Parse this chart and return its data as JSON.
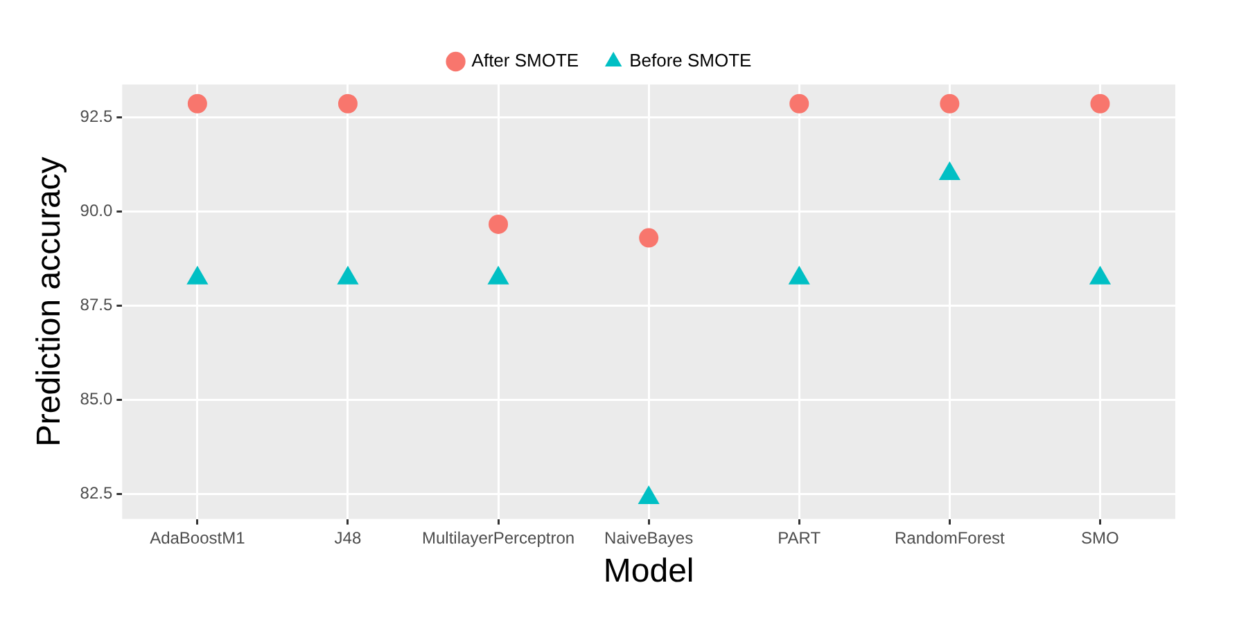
{
  "chart_data": {
    "type": "scatter",
    "xlabel": "Model",
    "ylabel": "Prediction accuracy",
    "categories": [
      "AdaBoostM1",
      "J48",
      "MultilayerPerceptron",
      "NaiveBayes",
      "PART",
      "RandomForest",
      "SMO"
    ],
    "series": [
      {
        "name": "After SMOTE",
        "color": "#f8766d",
        "marker": "circle",
        "values": [
          92.86,
          92.86,
          89.66,
          89.3,
          92.86,
          92.86,
          92.86
        ]
      },
      {
        "name": "Before SMOTE",
        "color": "#00bfc4",
        "marker": "triangle",
        "values": [
          88.23,
          88.23,
          88.23,
          82.4,
          88.23,
          91.0,
          88.23
        ]
      }
    ],
    "ylim": [
      81.84,
      93.37
    ],
    "yticks": [
      {
        "value": 82.5,
        "label": "82.5"
      },
      {
        "value": 85,
        "label": "85.0"
      },
      {
        "value": 87.5,
        "label": "87.5"
      },
      {
        "value": 90,
        "label": "90.0"
      },
      {
        "value": 92.5,
        "label": "92.5"
      }
    ],
    "grid": true,
    "legend": "top"
  }
}
